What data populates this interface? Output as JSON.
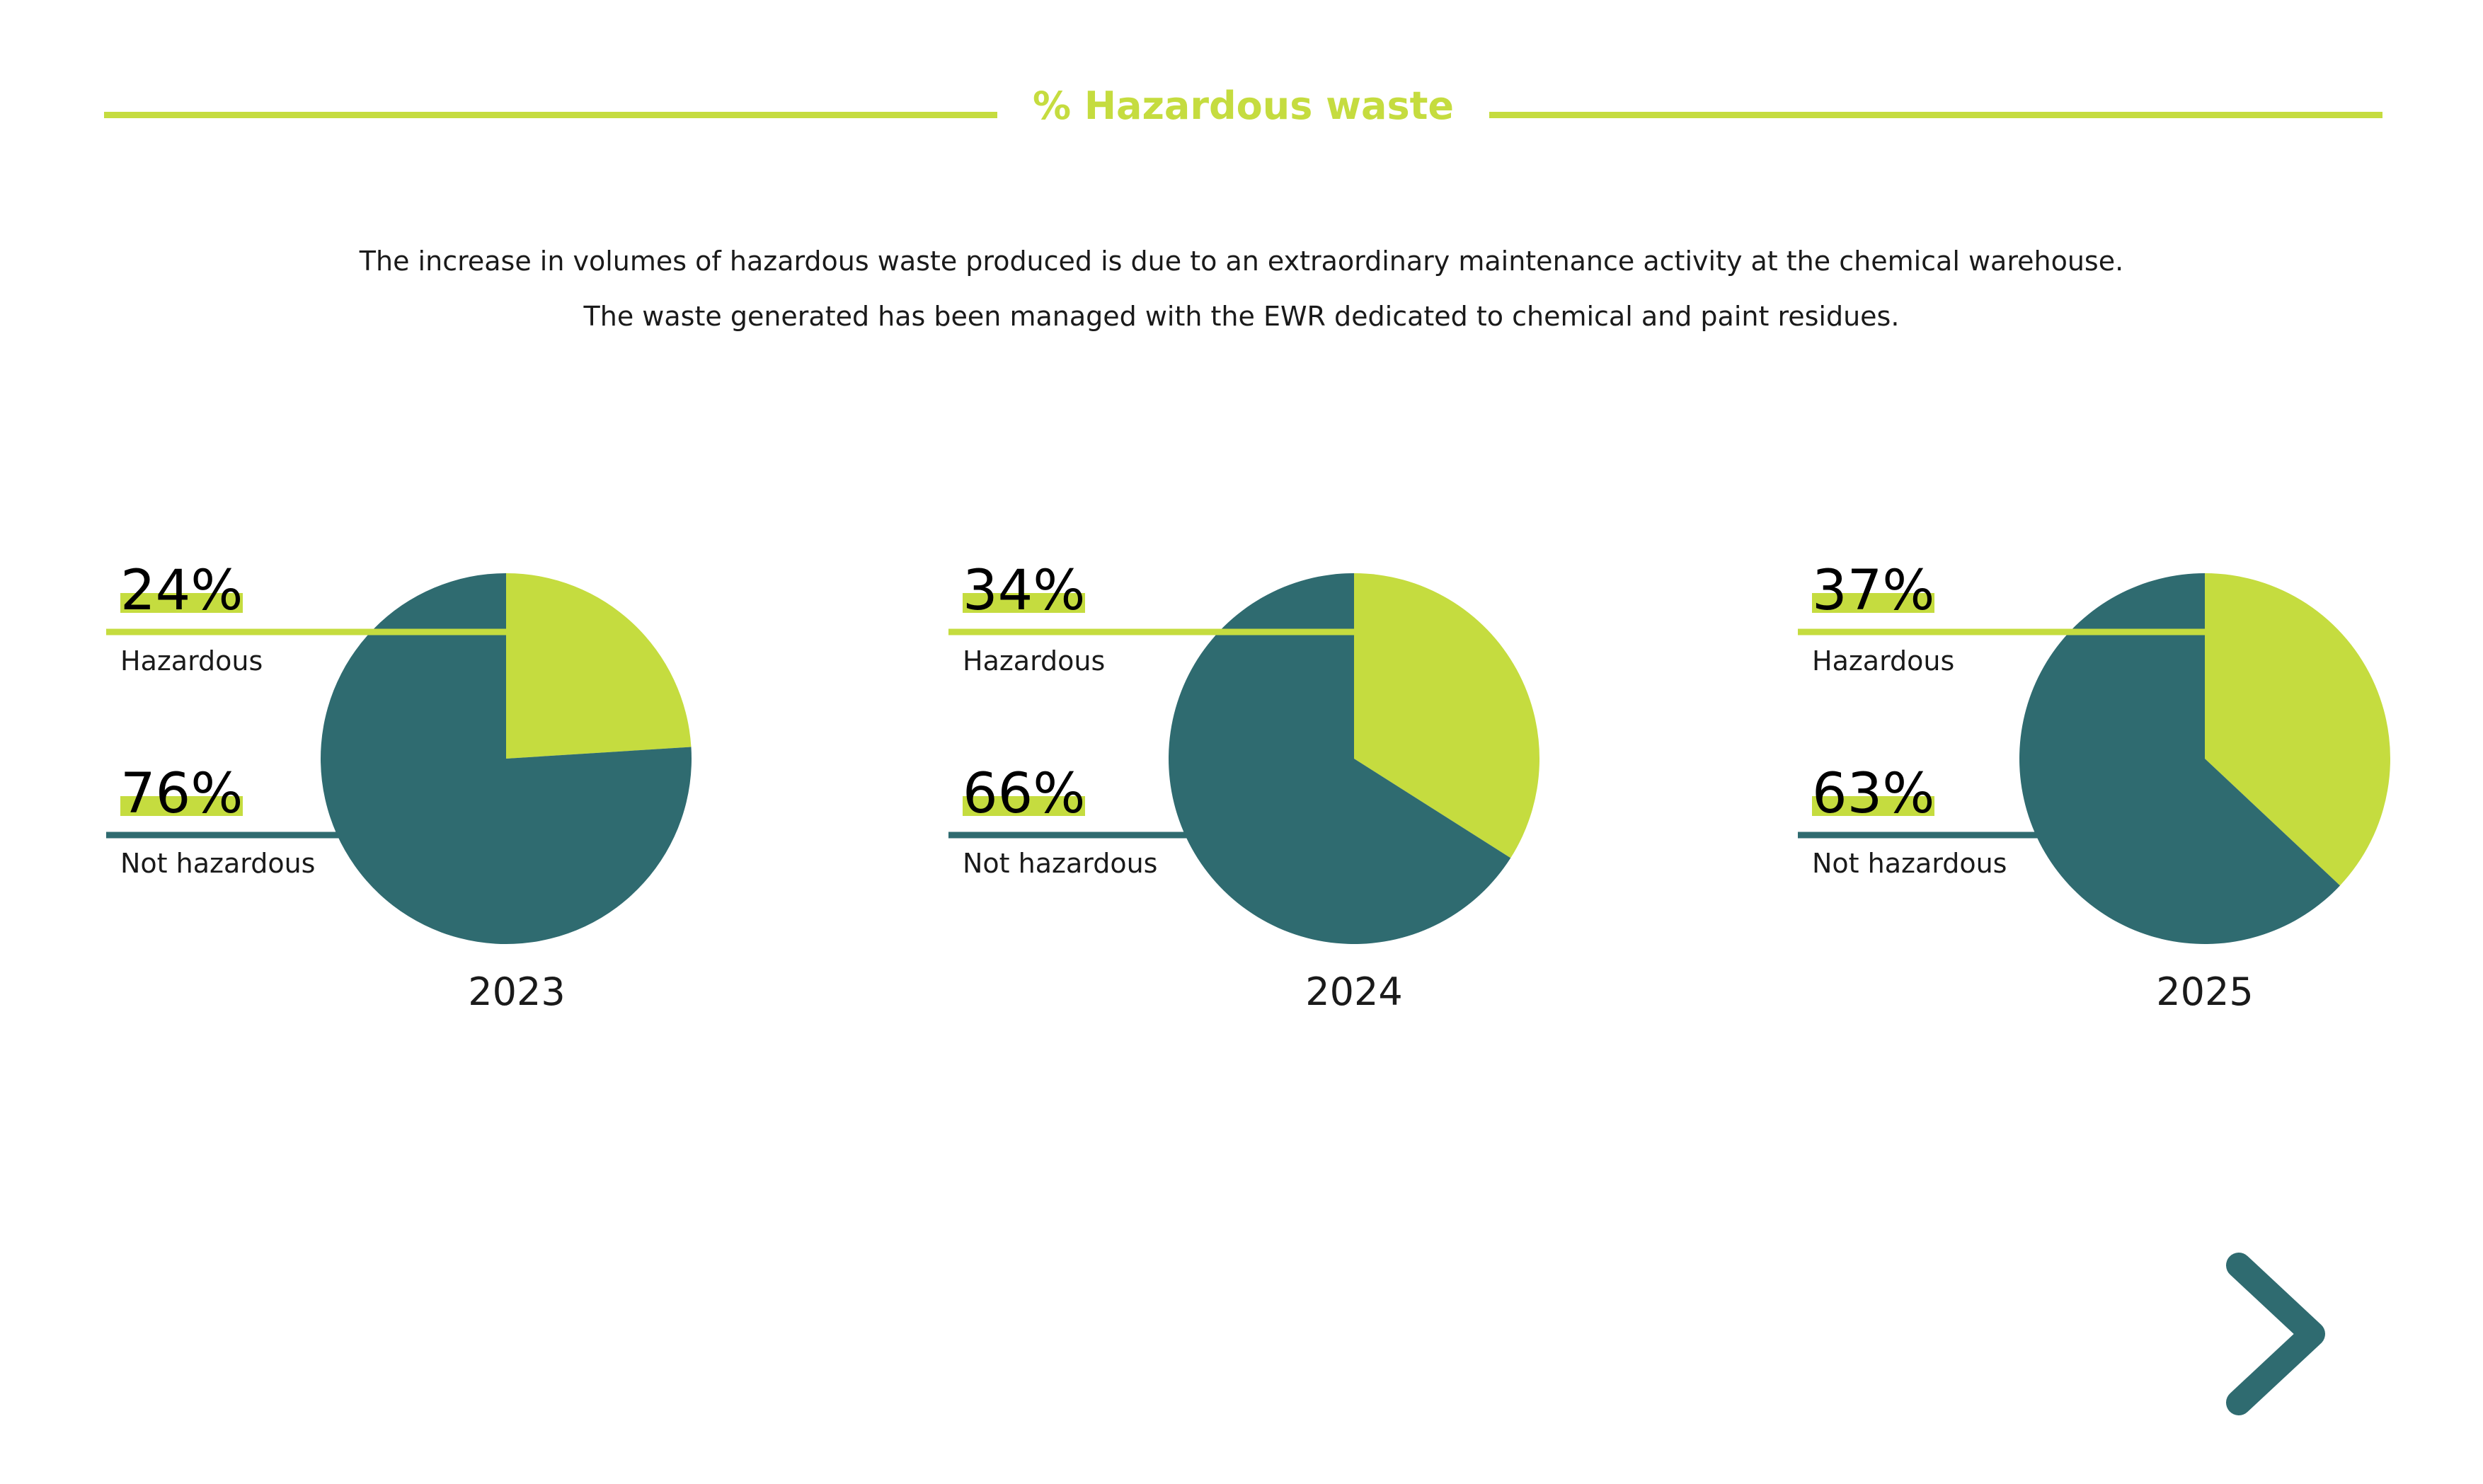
{
  "title": "% Hazardous waste",
  "intro": [
    "The increase in volumes of hazardous waste produced is due to an extraordinary maintenance activity at the chemical warehouse.",
    "The waste generated has been managed with the EWR dedicated to chemical and paint residues."
  ],
  "colors": {
    "hazardous": "#c5dc3f",
    "not_hazardous": "#2f6b70",
    "title": "#c5dc3f"
  },
  "chart_data": [
    {
      "type": "pie",
      "title": "2023",
      "labels": [
        "Hazardous",
        "Not hazardous"
      ],
      "values": [
        24,
        76
      ],
      "value_labels": [
        "24%",
        "76%"
      ]
    },
    {
      "type": "pie",
      "title": "2024",
      "labels": [
        "Hazardous",
        "Not hazardous"
      ],
      "values": [
        34,
        66
      ],
      "value_labels": [
        "34%",
        "66%"
      ]
    },
    {
      "type": "pie",
      "title": "2025",
      "labels": [
        "Hazardous",
        "Not hazardous"
      ],
      "values": [
        37,
        63
      ],
      "value_labels": [
        "37%",
        "63%"
      ]
    }
  ],
  "navigation": {
    "next_icon": "chevron-right-icon"
  }
}
